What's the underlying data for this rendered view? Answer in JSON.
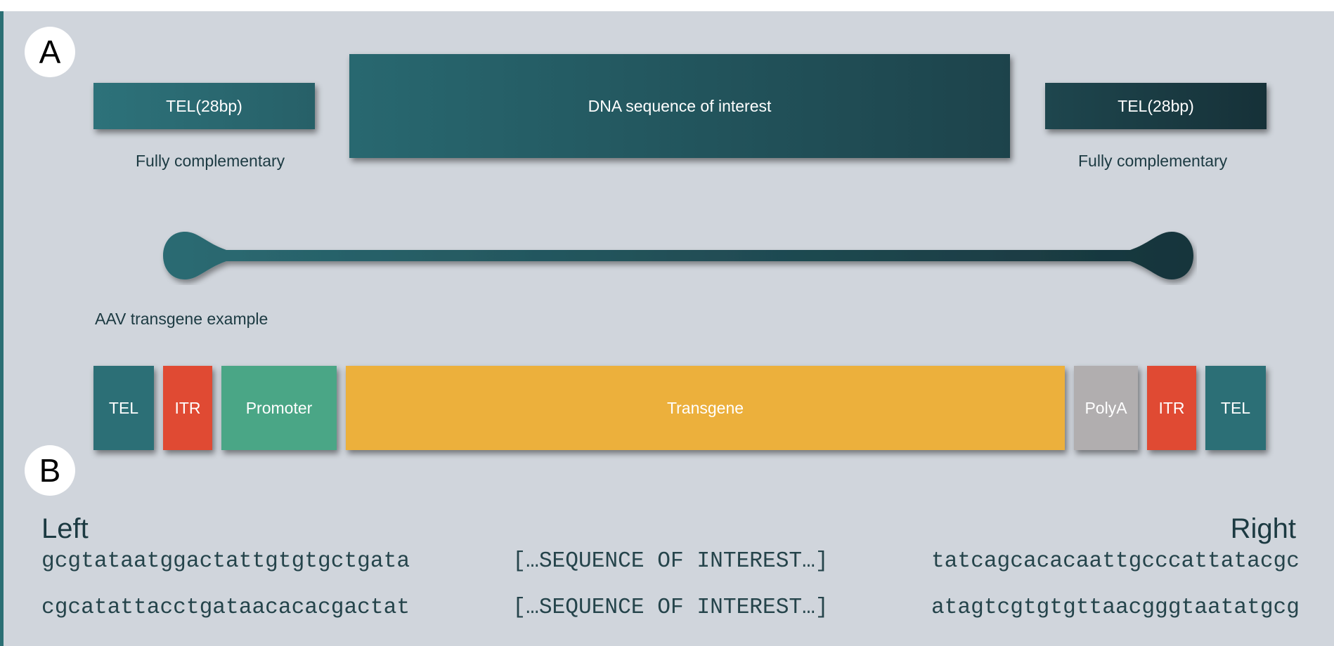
{
  "panel_a": {
    "label": "A",
    "tel_left": "TEL(28bp)",
    "dna_block": "DNA sequence of interest",
    "tel_right": "TEL(28bp)",
    "left_caption": "Fully complementary",
    "right_caption": "Fully complementary",
    "aav_caption": "AAV transgene example",
    "construct": [
      {
        "label": "TEL",
        "color": "#2c6f76"
      },
      {
        "label": "ITR",
        "color": "#e04a33"
      },
      {
        "label": "Promoter",
        "color": "#4aa686"
      },
      {
        "label": "Transgene",
        "color": "#ecb03c"
      },
      {
        "label": "PolyA",
        "color": "#b1aeaf"
      },
      {
        "label": "ITR",
        "color": "#e04a33"
      },
      {
        "label": "TEL",
        "color": "#2c6f76"
      }
    ]
  },
  "panel_b": {
    "label": "B",
    "left_heading": "Left",
    "right_heading": "Right",
    "strands": [
      {
        "left": "gcgtataatggactattgtgtgctgata",
        "middle": "[…SEQUENCE OF INTEREST…]",
        "right": "tatcagcacacaattgcccattatacgc"
      },
      {
        "left": "cgcatattacctgataacacacgactat",
        "middle": "[…SEQUENCE OF INTEREST…]",
        "right": "atagtcgtgtgttaacgggtaatatgcg"
      }
    ]
  },
  "colors": {
    "background": "#d0d5dc",
    "teal_light": "#2d727a",
    "teal_dark": "#163138",
    "text_dark": "#1c3a42"
  }
}
